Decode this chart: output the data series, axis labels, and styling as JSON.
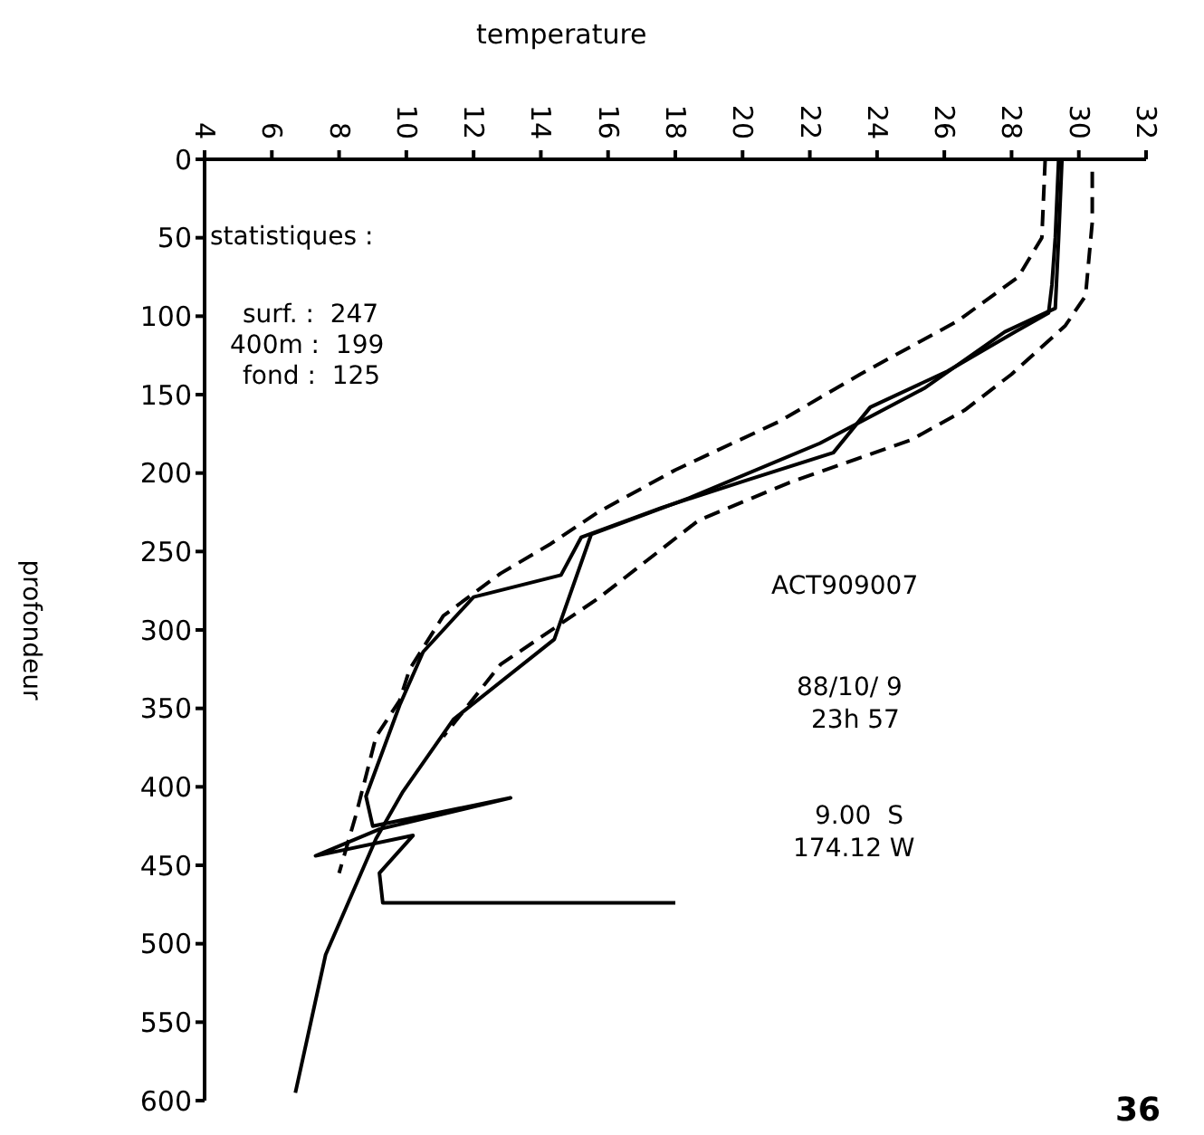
{
  "chart_data": {
    "type": "line",
    "xlabel": "temperature",
    "ylabel": "profondeur",
    "xlim": [
      4,
      32
    ],
    "xticks": [
      4,
      6,
      8,
      10,
      12,
      14,
      16,
      18,
      20,
      22,
      24,
      26,
      28,
      30,
      32
    ],
    "ylim": [
      600,
      0
    ],
    "yticks": [
      0,
      50,
      100,
      150,
      200,
      250,
      300,
      350,
      400,
      450,
      500,
      550,
      600
    ],
    "grid": false,
    "legend": false,
    "series": [
      {
        "color": "#000000",
        "line_style": "solid",
        "x": [
          29.4,
          29.3,
          29.2,
          29.1,
          28.1,
          26.1,
          23.8,
          22.7,
          20.2,
          17.6,
          15.2,
          14.6,
          12.0,
          10.5,
          9.8,
          8.8,
          9.0,
          13.1,
          9.2,
          7.3,
          10.2,
          9.2,
          9.3,
          18.0
        ],
        "values": [
          0,
          50,
          80,
          98,
          110,
          135,
          158,
          187,
          204,
          222,
          241,
          265,
          279,
          314,
          348,
          406,
          425,
          407,
          427,
          444,
          431,
          455,
          474,
          474
        ]
      },
      {
        "color": "#000000",
        "line_style": "solid",
        "x": [
          29.5,
          29.4,
          29.3,
          27.8,
          25.4,
          22.3,
          18.4,
          15.5,
          14.4,
          11.4,
          9.9,
          9.1,
          7.6,
          6.7
        ],
        "values": [
          0,
          50,
          95,
          110,
          146,
          181,
          216,
          239,
          306,
          357,
          403,
          433,
          507,
          595
        ]
      },
      {
        "color": "#000000",
        "line_style": "dashed",
        "x": [
          29.0,
          28.9,
          28.2,
          26.4,
          23.5,
          21.1,
          18.0,
          15.7,
          14.3,
          12.8,
          11.1,
          10.1,
          9.8,
          9.1,
          8.5,
          8.0
        ],
        "values": [
          0,
          50,
          75,
          103,
          137,
          167,
          198,
          225,
          245,
          264,
          291,
          325,
          345,
          368,
          418,
          455
        ]
      },
      {
        "color": "#000000",
        "line_style": "dashed",
        "x": [
          30.4,
          30.4,
          30.2,
          29.6,
          28.0,
          26.6,
          25.0,
          21.4,
          18.7,
          15.7,
          12.8,
          11.1
        ],
        "values": [
          8,
          40,
          87,
          106,
          137,
          160,
          179,
          206,
          230,
          280,
          322,
          368
        ]
      }
    ],
    "annotations": [
      "statistiques :",
      "surf. :  247",
      "400m :  199",
      "fond :  125",
      "ACT909007",
      "88/10/ 9",
      "23h 57",
      "9.00  S",
      "174.12 W",
      "36"
    ]
  }
}
